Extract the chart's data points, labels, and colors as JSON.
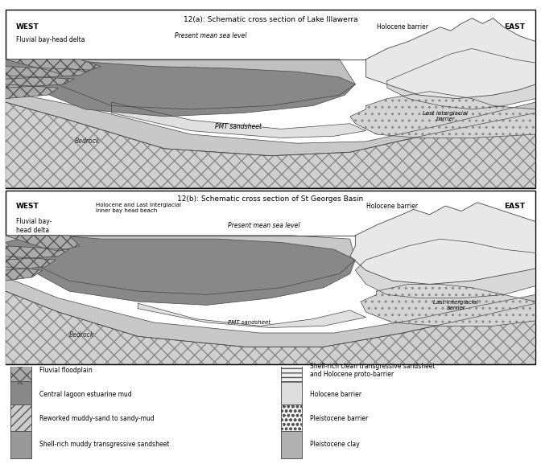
{
  "title_a": "12(a): Schematic cross section of Lake Illawerra",
  "title_b": "12(b): Schematic cross section of St Georges Basin",
  "bg_color": "#ffffff",
  "panel_a": {
    "west_label": "WEST",
    "west_sublabel": "Fluvial bay-head delta",
    "east_label": "EAST",
    "holocene_barrier_label": "Holocene barrier",
    "sea_level_label": "Present mean sea level",
    "pmt_label": "PMT sandsheet",
    "last_interg_label": "Last interglacial\nbarrier",
    "bedrock_label": "Bedrock"
  },
  "panel_b": {
    "west_label": "WEST",
    "west_sublabel": "Fluvial bay-\nhead delta",
    "east_label": "EAST",
    "holocene_barrier_label": "Holocene barrier",
    "sea_level_label": "Present mean sea level",
    "inner_bay_label": "Holocene and Last Interglacial\nInner bay head beach",
    "pmt_label": "PMT sandsheet",
    "last_interg_label": "Last interglacial\nbarrier",
    "bedrock_label": "Bedrock"
  },
  "legend_left": [
    {
      "label": "Fluvial floodplain",
      "facecolor": "#aaaaaa",
      "hatch": "xx",
      "edgecolor": "#555555"
    },
    {
      "label": "Central lagoon estuarine mud",
      "facecolor": "#888888",
      "hatch": "",
      "edgecolor": "#555555"
    },
    {
      "label": "Reworked muddy-sand to sandy-mud",
      "facecolor": "#cccccc",
      "hatch": "///",
      "edgecolor": "#555555"
    },
    {
      "label": "Shell-rich muddy transgressive sandsheet",
      "facecolor": "#999999",
      "hatch": "",
      "edgecolor": "#555555"
    }
  ],
  "legend_right": [
    {
      "label": "Shell-rich clean transgressive sandsheet\nand Holocene proto-barrier",
      "facecolor": "#f0f0f0",
      "hatch": "---",
      "edgecolor": "#555555"
    },
    {
      "label": "Holocene barrier",
      "facecolor": "#dddddd",
      "hatch": "",
      "edgecolor": "#555555"
    },
    {
      "label": "Pleistocene barrier",
      "facecolor": "#f5f5f5",
      "hatch": "ooo",
      "edgecolor": "#555555"
    },
    {
      "label": "Pleistocene clay",
      "facecolor": "#b0b0b0",
      "hatch": "",
      "edgecolor": "#555555"
    }
  ]
}
